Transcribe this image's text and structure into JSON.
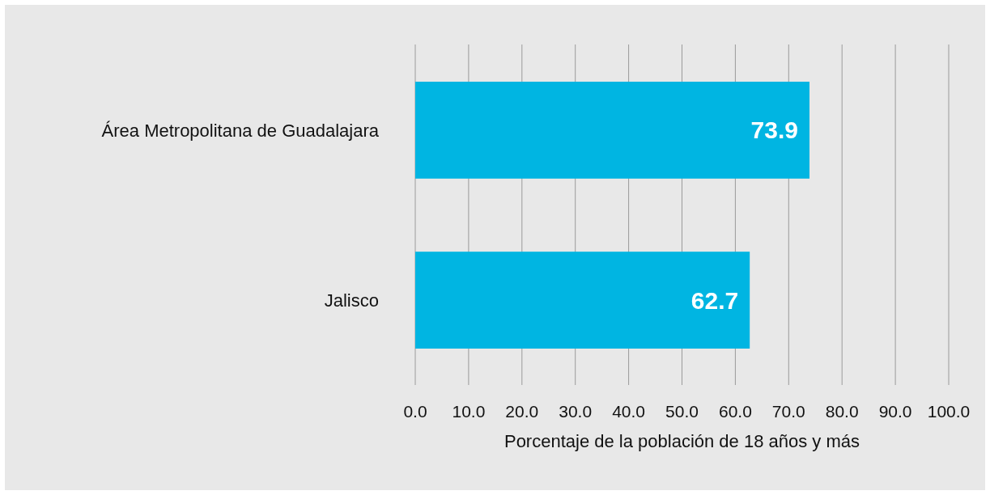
{
  "chart_data": {
    "type": "bar",
    "orientation": "horizontal",
    "xlabel": "Porcentaje de la población de 18 años y más",
    "categories": [
      "Área Metropolitana de Guadalajara",
      "Jalisco"
    ],
    "values": [
      73.9,
      62.7
    ],
    "color": "#00b5e2",
    "data_labels": true,
    "xlim": [
      0,
      100
    ],
    "xticks": [
      {
        "value": 0,
        "label": "0.0"
      },
      {
        "value": 10,
        "label": "10.0"
      },
      {
        "value": 20,
        "label": "20.0"
      },
      {
        "value": 30,
        "label": "30.0"
      },
      {
        "value": 40,
        "label": "40.0"
      },
      {
        "value": 50,
        "label": "50.0"
      },
      {
        "value": 60,
        "label": "60.0"
      },
      {
        "value": 70,
        "label": "70.0"
      },
      {
        "value": 80,
        "label": "80.0"
      },
      {
        "value": 90,
        "label": "90.0"
      },
      {
        "value": 100,
        "label": "100.0"
      }
    ],
    "grid": "x"
  }
}
